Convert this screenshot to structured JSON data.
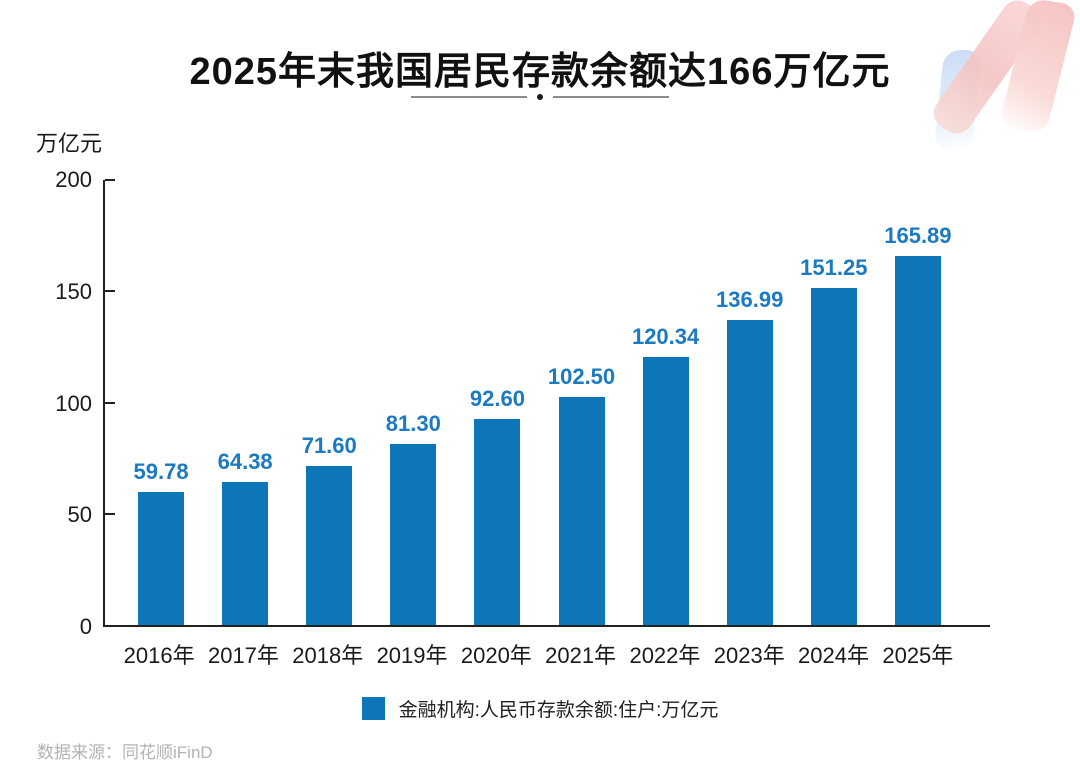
{
  "title": "2025年末我国居民存款余额达166万亿元",
  "unit_label": "万亿元",
  "legend": {
    "label": "金融机构:人民币存款余额:住户:万亿元",
    "swatch_color": "#0d76b8"
  },
  "footer": {
    "source": "数据来源：同花顺iFinD"
  },
  "colors": {
    "bar": "#0d76b8",
    "value_label": "#1b7ac1",
    "axis": "#222222"
  },
  "chart_data": {
    "type": "bar",
    "title": "2025年末我国居民存款余额达166万亿元",
    "categories": [
      "2016年",
      "2017年",
      "2018年",
      "2019年",
      "2020年",
      "2021年",
      "2022年",
      "2023年",
      "2024年",
      "2025年"
    ],
    "values": [
      59.78,
      64.38,
      71.6,
      81.3,
      92.6,
      102.5,
      120.34,
      136.99,
      151.25,
      165.89
    ],
    "value_labels": [
      "59.78",
      "64.38",
      "71.60",
      "81.30",
      "92.60",
      "102.50",
      "120.34",
      "136.99",
      "151.25",
      "165.89"
    ],
    "xlabel": "",
    "ylabel": "万亿元",
    "ylim": [
      0,
      200
    ],
    "y_ticks": [
      0,
      50,
      100,
      150,
      200
    ],
    "grid": false,
    "legend_entries": [
      "金融机构:人民币存款余额:住户:万亿元"
    ],
    "legend_position": "bottom",
    "bar_color": "#0d76b8"
  }
}
